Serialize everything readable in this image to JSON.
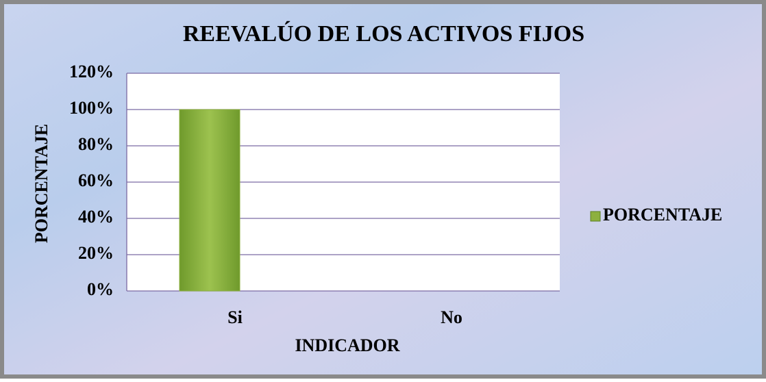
{
  "chart_data": {
    "type": "bar",
    "title": "REEVALÚO DE LOS ACTIVOS FIJOS",
    "xlabel": "INDICADOR",
    "ylabel": "PORCENTAJE",
    "categories": [
      "Si",
      "No"
    ],
    "series": [
      {
        "name": "PORCENTAJE",
        "color": "#8db03f",
        "values": [
          100,
          0
        ]
      }
    ],
    "ylim": [
      0,
      120
    ],
    "yticks": [
      {
        "value": 0,
        "label": "0%"
      },
      {
        "value": 20,
        "label": "20%"
      },
      {
        "value": 40,
        "label": "40%"
      },
      {
        "value": 60,
        "label": "60%"
      },
      {
        "value": 80,
        "label": "80%"
      },
      {
        "value": 100,
        "label": "100%"
      },
      {
        "value": 120,
        "label": "120%"
      }
    ],
    "grid": true,
    "legend": "right"
  }
}
